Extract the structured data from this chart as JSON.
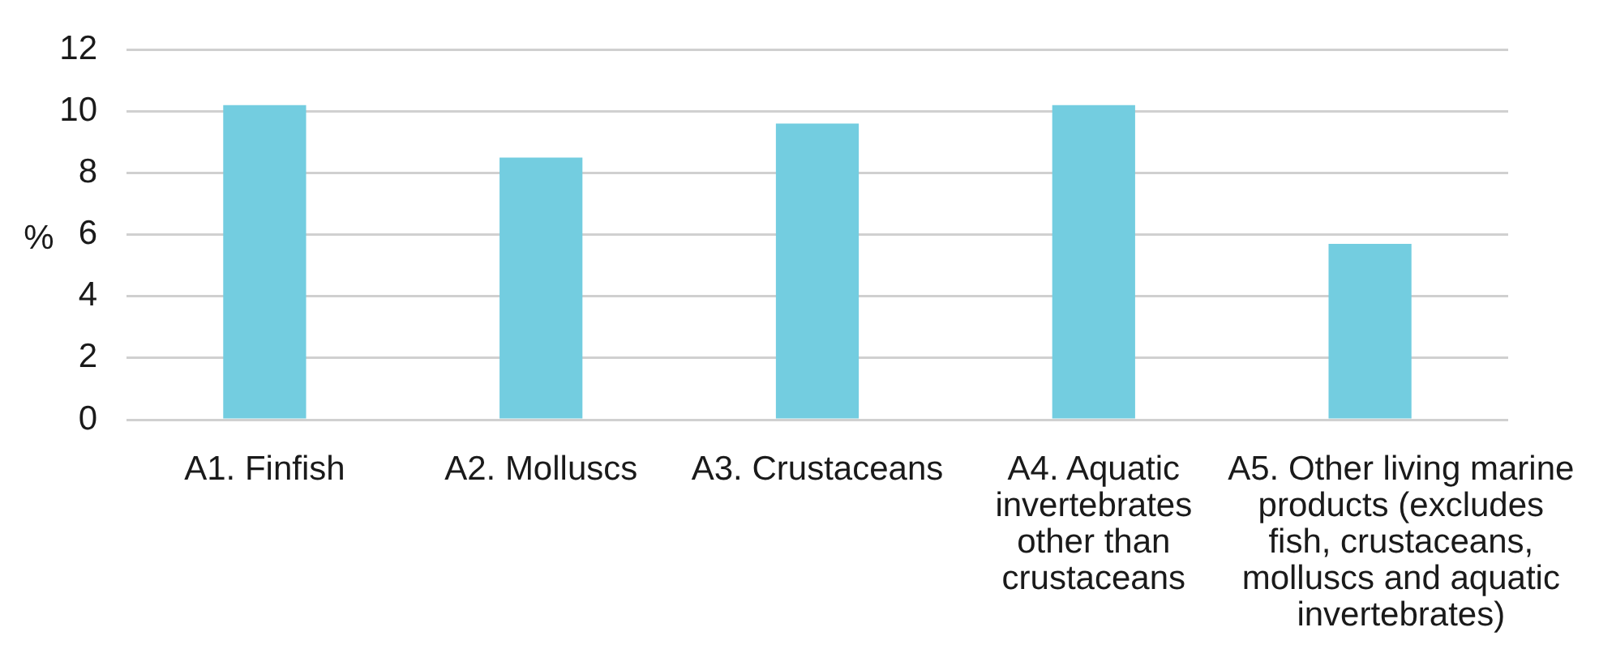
{
  "chart_data": {
    "type": "bar",
    "ylabel": "%",
    "categories": [
      "A1. Finfish",
      "A2. Molluscs",
      "A3. Crustaceans",
      "A4. Aquatic invertebrates other than crustaceans",
      "A5. Other living marine products (excludes fish, crustaceans, molluscs and aquatic invertebrates)"
    ],
    "values": [
      10.2,
      8.5,
      9.6,
      10.2,
      5.7
    ],
    "color": "#73cde0",
    "ylim": [
      0,
      12
    ],
    "yticks": [
      0,
      2,
      4,
      6,
      8,
      10,
      12
    ],
    "grid": "y"
  }
}
